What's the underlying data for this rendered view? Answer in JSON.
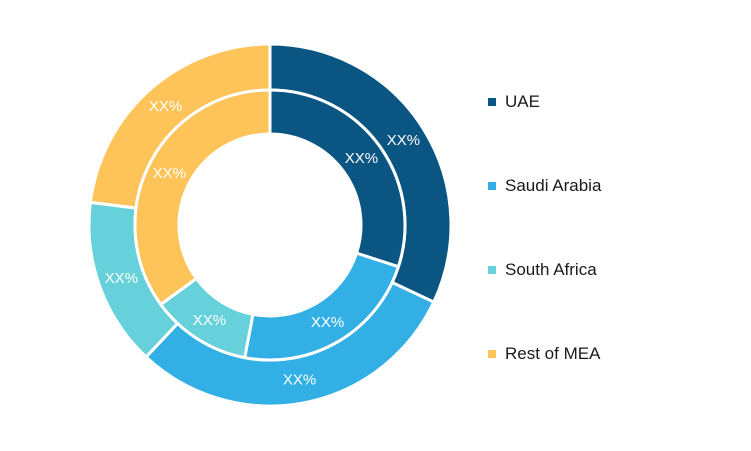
{
  "chart_data": {
    "type": "donut",
    "rings": [
      {
        "name": "outer",
        "values": [
          0.32,
          0.3,
          0.15,
          0.23
        ],
        "labels": [
          "XX%",
          "XX%",
          "XX%",
          "XX%"
        ]
      },
      {
        "name": "inner",
        "values": [
          0.3,
          0.23,
          0.12,
          0.35
        ],
        "labels": [
          "XX%",
          "XX%",
          "XX%",
          "XX%"
        ]
      }
    ],
    "categories": [
      "UAE",
      "Saudi Arabia",
      "South Africa",
      "Rest of MEA"
    ],
    "colors": [
      "#0b5583",
      "#32b0e5",
      "#66d1da",
      "#fec45a"
    ],
    "legend_position": "right"
  }
}
